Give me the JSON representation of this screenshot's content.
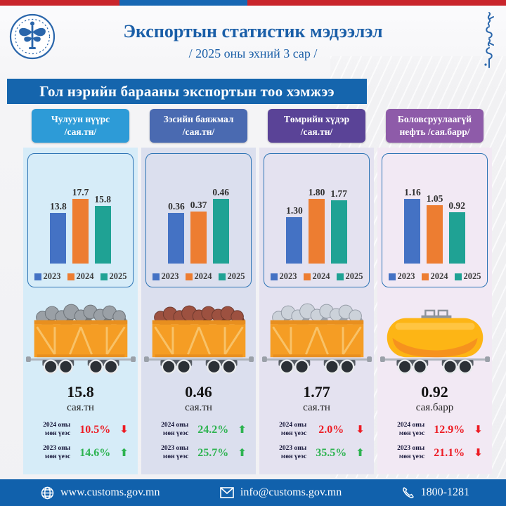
{
  "header": {
    "title": "Экспортын статистик мэдээлэл",
    "subtitle": "/ 2025 оны эхний 3 сар /"
  },
  "banner": {
    "title": "Гол нэрийн барааны экспортын тоо хэмжээ"
  },
  "icons": {
    "logo": "mongolian-customs-emblem",
    "script": "mongolian-vertical-script",
    "footer": [
      "globe-icon",
      "envelope-icon",
      "phone-icon"
    ],
    "wagons": [
      "coal-wagon-icon",
      "copper-concentrate-wagon-icon",
      "iron-ore-wagon-icon",
      "oil-tank-wagon-icon"
    ]
  },
  "chart_data": [
    {
      "type": "bar",
      "title": "Чулуун нүүрс",
      "unit": "сая.тн",
      "categories": [
        "2023",
        "2024",
        "2025"
      ],
      "values": [
        13.8,
        17.7,
        15.8
      ],
      "value_labels": [
        "13.8",
        "17.7",
        "15.8"
      ],
      "series_colors": [
        "#4472c4",
        "#ed7d31",
        "#1fa294"
      ],
      "ylim": [
        0,
        17.7
      ],
      "grid": false,
      "legend_position": "bottom"
    },
    {
      "type": "bar",
      "title": "Зэсийн баяжмал",
      "unit": "сая.тн",
      "categories": [
        "2023",
        "2024",
        "2025"
      ],
      "values": [
        0.36,
        0.37,
        0.46
      ],
      "value_labels": [
        "0.36",
        "0.37",
        "0.46"
      ],
      "series_colors": [
        "#4472c4",
        "#ed7d31",
        "#1fa294"
      ],
      "ylim": [
        0,
        0.46
      ],
      "grid": false,
      "legend_position": "bottom"
    },
    {
      "type": "bar",
      "title": "Төмрийн хүдэр",
      "unit": "сая.тн",
      "categories": [
        "2023",
        "2024",
        "2025"
      ],
      "values": [
        1.3,
        1.8,
        1.77
      ],
      "value_labels": [
        "1.30",
        "1.80",
        "1.77"
      ],
      "series_colors": [
        "#4472c4",
        "#ed7d31",
        "#1fa294"
      ],
      "ylim": [
        0,
        1.8
      ],
      "grid": false,
      "legend_position": "bottom"
    },
    {
      "type": "bar",
      "title": "Боловсруулаагүй нефть",
      "unit": "сая.барр",
      "categories": [
        "2023",
        "2024",
        "2025"
      ],
      "values": [
        1.16,
        1.05,
        0.92
      ],
      "value_labels": [
        "1.16",
        "1.05",
        "0.92"
      ],
      "series_colors": [
        "#4472c4",
        "#ed7d31",
        "#1fa294"
      ],
      "ylim": [
        0,
        1.16
      ],
      "grid": false,
      "legend_position": "bottom"
    }
  ],
  "columns": [
    {
      "header_line1": "Чулуун нүүрс",
      "header_line2": "/сая.тн/",
      "header_color": "#2d9bd7",
      "panel_color": "#d6ecf8",
      "total_value": "15.8",
      "total_unit": "сая.тн",
      "comparisons": [
        {
          "label_line1": "2024 оны",
          "label_line2": "мөн үеэс",
          "value": "10.5%",
          "arrow": "⬇",
          "color": "#ed1c24"
        },
        {
          "label_line1": "2023 оны",
          "label_line2": "мөн үеэс",
          "value": "14.6%",
          "arrow": "⬆",
          "color": "#2db350"
        }
      ]
    },
    {
      "header_line1": "Зэсийн баяжмал",
      "header_line2": "/сая.тн/",
      "header_color": "#4a6ab1",
      "panel_color": "#dbdfee",
      "total_value": "0.46",
      "total_unit": "сая.тн",
      "comparisons": [
        {
          "label_line1": "2024 оны",
          "label_line2": "мөн үеэс",
          "value": "24.2%",
          "arrow": "⬆",
          "color": "#2db350"
        },
        {
          "label_line1": "2023 оны",
          "label_line2": "мөн үеэс",
          "value": "25.7%",
          "arrow": "⬆",
          "color": "#2db350"
        }
      ]
    },
    {
      "header_line1": "Төмрийн хүдэр",
      "header_line2": "/сая.тн/",
      "header_color": "#5a4397",
      "panel_color": "#e4e2f0",
      "total_value": "1.77",
      "total_unit": "сая.тн",
      "comparisons": [
        {
          "label_line1": "2024 оны",
          "label_line2": "мөн үеэс",
          "value": "2.0%",
          "arrow": "⬇",
          "color": "#ed1c24"
        },
        {
          "label_line1": "2023 оны",
          "label_line2": "мөн үеэс",
          "value": "35.5%",
          "arrow": "⬆",
          "color": "#2db350"
        }
      ]
    },
    {
      "header_line1": "Боловсруулаагүй",
      "header_line2": "нефть /сая.барр/",
      "header_color": "#8e5ba9",
      "panel_color": "#f2e9f4",
      "total_value": "0.92",
      "total_unit": "сая.барр",
      "comparisons": [
        {
          "label_line1": "2024 оны",
          "label_line2": "мөн үеэс",
          "value": "12.9%",
          "arrow": "⬇",
          "color": "#ed1c24"
        },
        {
          "label_line1": "2023 оны",
          "label_line2": "мөн үеэс",
          "value": "21.1%",
          "arrow": "⬇",
          "color": "#ed1c24"
        }
      ]
    }
  ],
  "footer": {
    "website": "www.customs.gov.mn",
    "email": "info@customs.gov.mn",
    "phone": "1800-1281"
  }
}
